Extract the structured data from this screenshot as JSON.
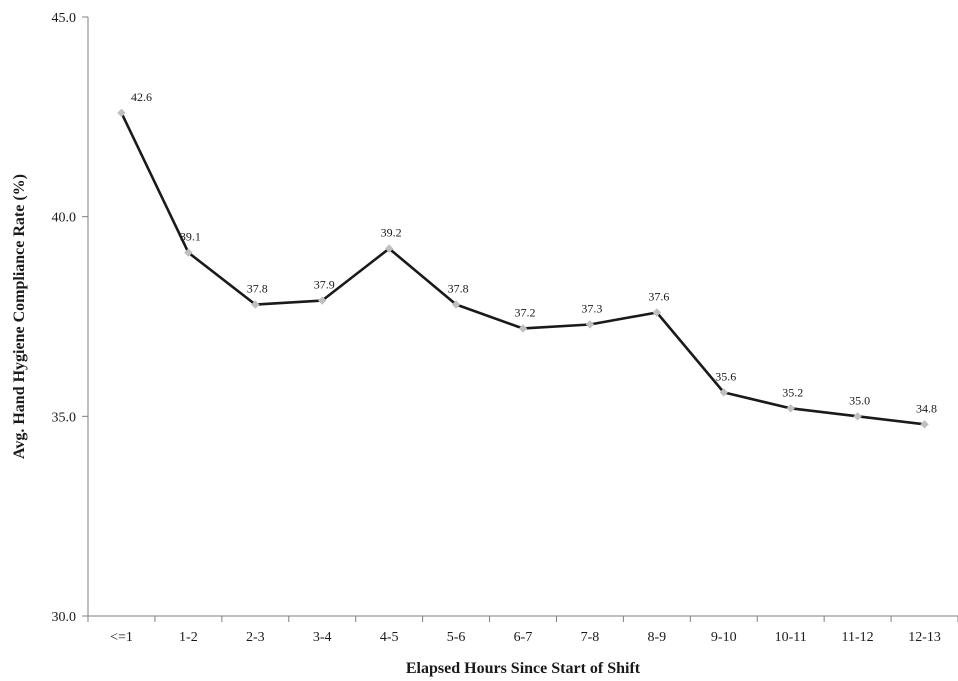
{
  "chart_data": {
    "type": "line",
    "title": "",
    "xlabel": "Elapsed Hours Since Start of Shift",
    "ylabel": "Avg. Hand Hygiene Compliance Rate (%)",
    "categories": [
      "<=1",
      "1-2",
      "2-3",
      "3-4",
      "4-5",
      "5-6",
      "6-7",
      "7-8",
      "8-9",
      "9-10",
      "10-11",
      "11-12",
      "12-13"
    ],
    "series": [
      {
        "values": [
          42.6,
          39.1,
          37.8,
          37.9,
          39.2,
          37.8,
          37.2,
          37.3,
          37.6,
          35.6,
          35.2,
          35.0,
          34.8
        ]
      }
    ],
    "data_labels": [
      "42.6",
      "39.1",
      "37.8",
      "37.9",
      "39.2",
      "37.8",
      "37.2",
      "37.3",
      "37.6",
      "35.6",
      "35.2",
      "35.0",
      "34.8"
    ],
    "ylim": [
      30,
      45
    ],
    "yticks": [
      30,
      35,
      40,
      45
    ],
    "ytick_labels": [
      "30.0",
      "35.0",
      "40.0",
      "45.0"
    ],
    "grid": false,
    "legend": "none",
    "colors": {
      "line": "#1a1a1a",
      "marker": "#bfbfbf",
      "axis": "#7f7f7f",
      "text": "#1a1a1a"
    }
  }
}
